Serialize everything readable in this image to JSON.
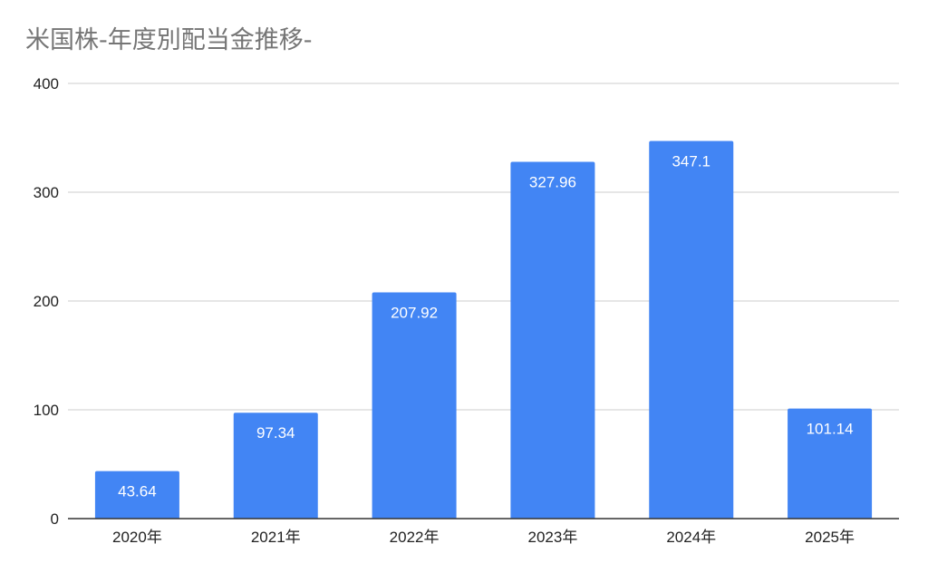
{
  "chart_data": {
    "type": "bar",
    "title": "米国株-年度別配当金推移-",
    "xlabel": "",
    "ylabel": "",
    "categories": [
      "2020年",
      "2021年",
      "2022年",
      "2023年",
      "2024年",
      "2025年"
    ],
    "values": [
      43.64,
      97.34,
      207.92,
      327.96,
      347.1,
      101.14
    ],
    "value_labels": [
      "43.64",
      "97.34",
      "207.92",
      "327.96",
      "347.1",
      "101.14"
    ],
    "ylim": [
      0,
      400
    ],
    "yticks": [
      0,
      100,
      200,
      300,
      400
    ],
    "ytick_labels": [
      "0",
      "100",
      "200",
      "300",
      "400"
    ],
    "grid": true,
    "legend": "none",
    "colors": {
      "bar": "#4285f4",
      "grid": "#cccccc",
      "axis": "#333333",
      "title": "#757575",
      "tick_text": "#222222",
      "data_label": "#ffffff"
    }
  }
}
